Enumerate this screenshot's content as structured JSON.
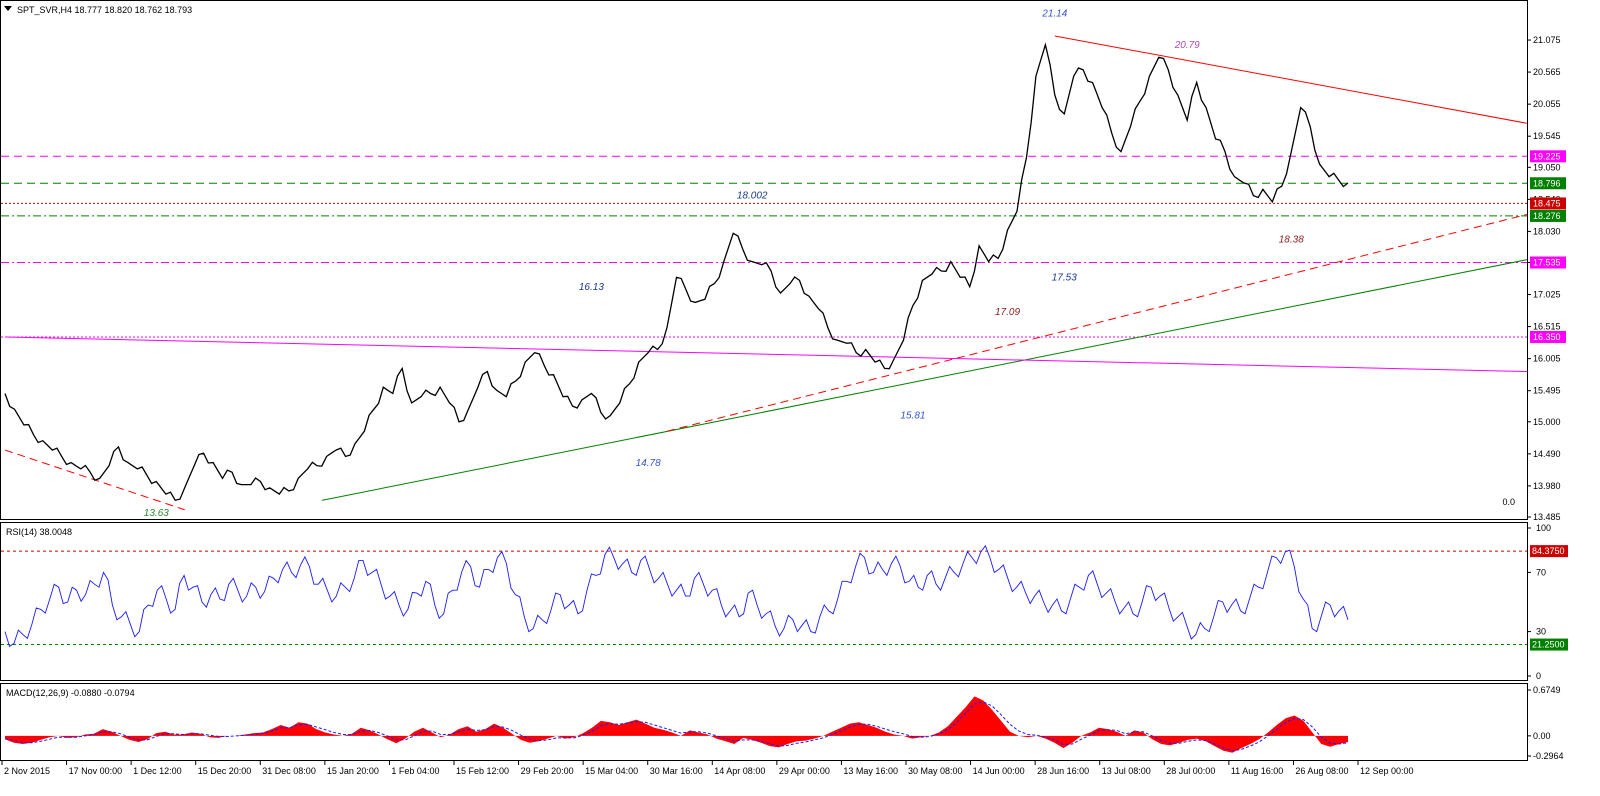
{
  "header": {
    "symbol_line": "SPT_SVR,H4  18.777 18.820 18.762 18.793",
    "rsi_label": "RSI(14) 38.0048",
    "macd_label": "MACD(12,26,9) -0.0880 -0.0794",
    "main_corner_value": "0.0"
  },
  "chart_data": [
    {
      "type": "line",
      "title": "SPT_SVR,H4",
      "xlabel": "",
      "ylabel": "",
      "ylim": [
        13.485,
        21.585
      ],
      "y_ticks": [
        "21.075",
        "20.565",
        "20.055",
        "19.545",
        "19.050",
        "18.540",
        "18.030",
        "17.535",
        "17.025",
        "16.515",
        "16.005",
        "15.495",
        "15.000",
        "14.490",
        "13.980",
        "13.485"
      ],
      "x_ticks": [
        "2 Nov 2015",
        "17 Nov 00:00",
        "1 Dec 12:00",
        "15 Dec 20:00",
        "31 Dec 08:00",
        "15 Jan 20:00",
        "1 Feb 04:00",
        "15 Feb 12:00",
        "29 Feb 20:00",
        "15 Mar 04:00",
        "30 Mar 16:00",
        "14 Apr 08:00",
        "29 Apr 00:00",
        "13 May 16:00",
        "30 May 08:00",
        "14 Jun 00:00",
        "28 Jun 16:00",
        "13 Jul 08:00",
        "28 Jul 00:00",
        "11 Aug 16:00",
        "26 Aug 08:00",
        "12 Sep 00:00"
      ],
      "series": [
        {
          "values": [
            15.45,
            15.2,
            14.95,
            14.8,
            14.7,
            14.55,
            14.45,
            14.35,
            14.25,
            14.2,
            14.1,
            14.3,
            14.6,
            14.35,
            14.25,
            14.15,
            14.05,
            13.85,
            13.75,
            13.95,
            14.3,
            14.5,
            14.35,
            14.1,
            14.2,
            14.0,
            14.0,
            14.05,
            13.95,
            13.85,
            13.9,
            14.1,
            14.25,
            14.3,
            14.45,
            14.55,
            14.45,
            14.65,
            14.85,
            15.2,
            15.55,
            15.45,
            15.85,
            15.3,
            15.4,
            15.45,
            15.55,
            15.3,
            15.0,
            15.2,
            15.55,
            15.8,
            15.5,
            15.4,
            15.65,
            15.95,
            16.1,
            15.9,
            15.75,
            15.4,
            15.25,
            15.35,
            15.45,
            15.15,
            15.1,
            15.3,
            15.6,
            15.95,
            16.1,
            16.15,
            16.5,
            17.3,
            17.1,
            16.9,
            16.95,
            17.2,
            17.55,
            18.0,
            17.75,
            17.55,
            17.5,
            17.4,
            17.05,
            17.2,
            17.25,
            17.0,
            16.8,
            16.5,
            16.3,
            16.25,
            16.1,
            16.15,
            15.95,
            15.85,
            16.0,
            16.3,
            16.85,
            17.25,
            17.35,
            17.4,
            17.55,
            17.3,
            17.15,
            17.8,
            17.55,
            17.6,
            18.05,
            18.35,
            19.2,
            20.5,
            21.0,
            20.2,
            19.9,
            20.5,
            20.6,
            20.4,
            20.0,
            19.6,
            19.3,
            19.7,
            20.1,
            20.5,
            20.8,
            20.6,
            20.2,
            19.8,
            20.4,
            20.0,
            19.5,
            19.3,
            18.9,
            18.8,
            18.6,
            18.7,
            18.5,
            18.75,
            19.3,
            20.0,
            19.7,
            19.1,
            18.9,
            18.85,
            18.8
          ]
        }
      ],
      "annotations": [
        {
          "text": "21.14",
          "x_index": 111,
          "y": 21.45,
          "color": "#3355cc"
        },
        {
          "text": "20.79",
          "x_index": 125,
          "y": 20.95,
          "color": "#b04ab0"
        },
        {
          "text": "18.002",
          "x_index": 79,
          "y": 18.55,
          "color": "#1a3a8a"
        },
        {
          "text": "18.38",
          "x_index": 136,
          "y": 17.85,
          "color": "#8b1a1a"
        },
        {
          "text": "17.53",
          "x_index": 112,
          "y": 17.25,
          "color": "#1a3a8a"
        },
        {
          "text": "16.13",
          "x_index": 62,
          "y": 17.1,
          "color": "#1a3a8a"
        },
        {
          "text": "17.09",
          "x_index": 106,
          "y": 16.7,
          "color": "#8b1a1a"
        },
        {
          "text": "15.81",
          "x_index": 96,
          "y": 15.05,
          "color": "#3355cc"
        },
        {
          "text": "14.78",
          "x_index": 68,
          "y": 14.3,
          "color": "#3355cc"
        },
        {
          "text": "13.63",
          "x_index": 16,
          "y": 13.5,
          "color": "#2e8b2e"
        }
      ],
      "levels": [
        {
          "value": 19.225,
          "label": "19.225",
          "color": "#ff00ff",
          "style": "dashed"
        },
        {
          "value": 18.796,
          "label": "18.796",
          "color": "#008000",
          "style": "dashed"
        },
        {
          "value": 18.475,
          "label": "18.475",
          "color": "#cc0000",
          "style": "dotted"
        },
        {
          "value": 18.276,
          "label": "18.276",
          "color": "#008000",
          "style": "dashdot"
        },
        {
          "value": 17.535,
          "label": "17.535",
          "color": "#ff00ff",
          "style": "dashdot"
        },
        {
          "value": 16.35,
          "label": "16.350",
          "color": "#ff00ff",
          "style": "dotted"
        }
      ],
      "trendlines": [
        {
          "color": "#ff0000",
          "style": "solid",
          "from": [
            111,
            21.14
          ],
          "to": [
            164.5,
            19.75
          ]
        },
        {
          "color": "#008000",
          "style": "solid",
          "from": [
            33.5,
            13.75
          ],
          "to": [
            164.5,
            17.58
          ]
        },
        {
          "color": "#ff0000",
          "style": "dashed",
          "from": [
            70,
            14.85
          ],
          "to": [
            164.5,
            18.3
          ]
        },
        {
          "color": "#ff00ff",
          "style": "solid",
          "from": [
            0,
            16.35
          ],
          "to": [
            164.5,
            15.8
          ]
        },
        {
          "color": "#ff0000",
          "style": "dashed",
          "from": [
            0,
            14.55
          ],
          "to": [
            19,
            13.6
          ]
        }
      ]
    },
    {
      "type": "line",
      "title": "RSI(14)",
      "ylim": [
        0,
        100
      ],
      "y_ticks": [
        "100",
        "70",
        "30",
        "0"
      ],
      "levels": [
        {
          "value": 84.375,
          "label": "84.3750",
          "color": "#cc0000"
        },
        {
          "value": 21.25,
          "label": "21.2500",
          "color": "#008000"
        }
      ],
      "series": [
        {
          "name": "RSI",
          "values": [
            30,
            22,
            28,
            35,
            45,
            52,
            60,
            50,
            58,
            55,
            62,
            70,
            48,
            40,
            35,
            30,
            48,
            58,
            52,
            45,
            68,
            60,
            50,
            55,
            52,
            62,
            58,
            54,
            60,
            57,
            66,
            72,
            70,
            75,
            74,
            62,
            58,
            54,
            60,
            66,
            78,
            70,
            62,
            54,
            48,
            45,
            56,
            64,
            48,
            42,
            58,
            70,
            74,
            60,
            72,
            80,
            76,
            55,
            40,
            32,
            38,
            45,
            55,
            48,
            42,
            58,
            68,
            82,
            80,
            76,
            70,
            78,
            72,
            66,
            62,
            58,
            54,
            66,
            62,
            58,
            48,
            44,
            40,
            56,
            48,
            42,
            34,
            32,
            38,
            34,
            30,
            40,
            44,
            52,
            64,
            74,
            80,
            70,
            72,
            76,
            74,
            64,
            60,
            68,
            62,
            66,
            70,
            76,
            80,
            84,
            80,
            72,
            66,
            60,
            56,
            54,
            50,
            48,
            44,
            52,
            60,
            68,
            62,
            56,
            50,
            46,
            42,
            50,
            60,
            54,
            46,
            40,
            34,
            28,
            32,
            40,
            50,
            48,
            44,
            52,
            60,
            70,
            80,
            84,
            74,
            52,
            32,
            40,
            48,
            44,
            38
          ]
        }
      ]
    },
    {
      "type": "area",
      "title": "MACD(12,26,9)",
      "ylim": [
        -0.2964,
        0.6749
      ],
      "y_ticks": [
        "0.6749",
        "0.00",
        "-0.2964"
      ],
      "series": [
        {
          "name": "MACD",
          "values": [
            -0.05,
            -0.1,
            -0.12,
            -0.1,
            -0.06,
            -0.02,
            0.0,
            -0.03,
            -0.02,
            0.02,
            0.03,
            0.1,
            0.06,
            0.0,
            -0.06,
            -0.09,
            -0.05,
            0.04,
            0.06,
            0.02,
            0.02,
            0.05,
            0.03,
            -0.02,
            -0.03,
            0.0,
            0.0,
            0.02,
            0.04,
            0.05,
            0.1,
            0.16,
            0.12,
            0.2,
            0.18,
            0.1,
            0.05,
            0.02,
            0.0,
            0.03,
            0.12,
            0.08,
            0.02,
            -0.05,
            -0.11,
            -0.04,
            0.06,
            0.12,
            0.05,
            -0.02,
            0.02,
            0.1,
            0.14,
            0.06,
            0.1,
            0.18,
            0.12,
            0.03,
            -0.06,
            -0.1,
            -0.08,
            -0.04,
            0.0,
            -0.04,
            -0.02,
            0.04,
            0.12,
            0.22,
            0.2,
            0.16,
            0.2,
            0.24,
            0.18,
            0.12,
            0.09,
            0.05,
            0.0,
            0.08,
            0.05,
            0.02,
            -0.04,
            -0.08,
            -0.12,
            -0.03,
            -0.06,
            -0.1,
            -0.15,
            -0.17,
            -0.12,
            -0.08,
            -0.07,
            -0.04,
            0.0,
            0.06,
            0.12,
            0.18,
            0.2,
            0.16,
            0.12,
            0.06,
            0.02,
            0.0,
            -0.04,
            -0.02,
            0.0,
            0.05,
            0.14,
            0.28,
            0.42,
            0.58,
            0.52,
            0.38,
            0.22,
            0.06,
            0.0,
            -0.02,
            0.0,
            -0.04,
            -0.1,
            -0.18,
            -0.1,
            0.0,
            0.05,
            0.12,
            0.1,
            0.06,
            0.0,
            0.08,
            0.05,
            -0.05,
            -0.12,
            -0.14,
            -0.1,
            -0.06,
            -0.04,
            -0.08,
            -0.15,
            -0.22,
            -0.25,
            -0.18,
            -0.12,
            -0.05,
            0.05,
            0.16,
            0.26,
            0.3,
            0.22,
            0.05,
            -0.12,
            -0.16,
            -0.12,
            -0.09
          ]
        },
        {
          "name": "Signal",
          "values": [
            -0.04,
            -0.07,
            -0.1,
            -0.1,
            -0.08,
            -0.05,
            -0.02,
            -0.02,
            -0.02,
            0.0,
            0.02,
            0.06,
            0.06,
            0.03,
            -0.02,
            -0.06,
            -0.06,
            -0.01,
            0.03,
            0.03,
            0.02,
            0.03,
            0.03,
            0.01,
            -0.01,
            -0.01,
            0.0,
            0.01,
            0.02,
            0.04,
            0.07,
            0.12,
            0.12,
            0.16,
            0.17,
            0.13,
            0.09,
            0.05,
            0.02,
            0.02,
            0.07,
            0.08,
            0.05,
            0.0,
            -0.06,
            -0.06,
            0.0,
            0.07,
            0.07,
            0.02,
            0.02,
            0.06,
            0.1,
            0.08,
            0.09,
            0.14,
            0.13,
            0.08,
            0.01,
            -0.05,
            -0.07,
            -0.06,
            -0.03,
            -0.03,
            -0.03,
            0.01,
            0.07,
            0.15,
            0.18,
            0.17,
            0.19,
            0.21,
            0.2,
            0.16,
            0.12,
            0.08,
            0.04,
            0.06,
            0.06,
            0.04,
            0.0,
            -0.04,
            -0.08,
            -0.06,
            -0.06,
            -0.08,
            -0.12,
            -0.15,
            -0.14,
            -0.11,
            -0.09,
            -0.06,
            -0.03,
            0.02,
            0.07,
            0.13,
            0.17,
            0.17,
            0.14,
            0.1,
            0.06,
            0.03,
            -0.01,
            -0.02,
            -0.01,
            0.03,
            0.09,
            0.2,
            0.33,
            0.47,
            0.5,
            0.44,
            0.31,
            0.17,
            0.07,
            0.02,
            0.01,
            -0.02,
            -0.06,
            -0.13,
            -0.12,
            -0.05,
            0.01,
            0.08,
            0.09,
            0.08,
            0.03,
            0.06,
            0.06,
            0.0,
            -0.07,
            -0.11,
            -0.11,
            -0.08,
            -0.06,
            -0.07,
            -0.12,
            -0.18,
            -0.22,
            -0.2,
            -0.15,
            -0.09,
            0.0,
            0.1,
            0.2,
            0.26,
            0.24,
            0.13,
            -0.02,
            -0.11,
            -0.12,
            -0.1
          ]
        }
      ]
    }
  ]
}
